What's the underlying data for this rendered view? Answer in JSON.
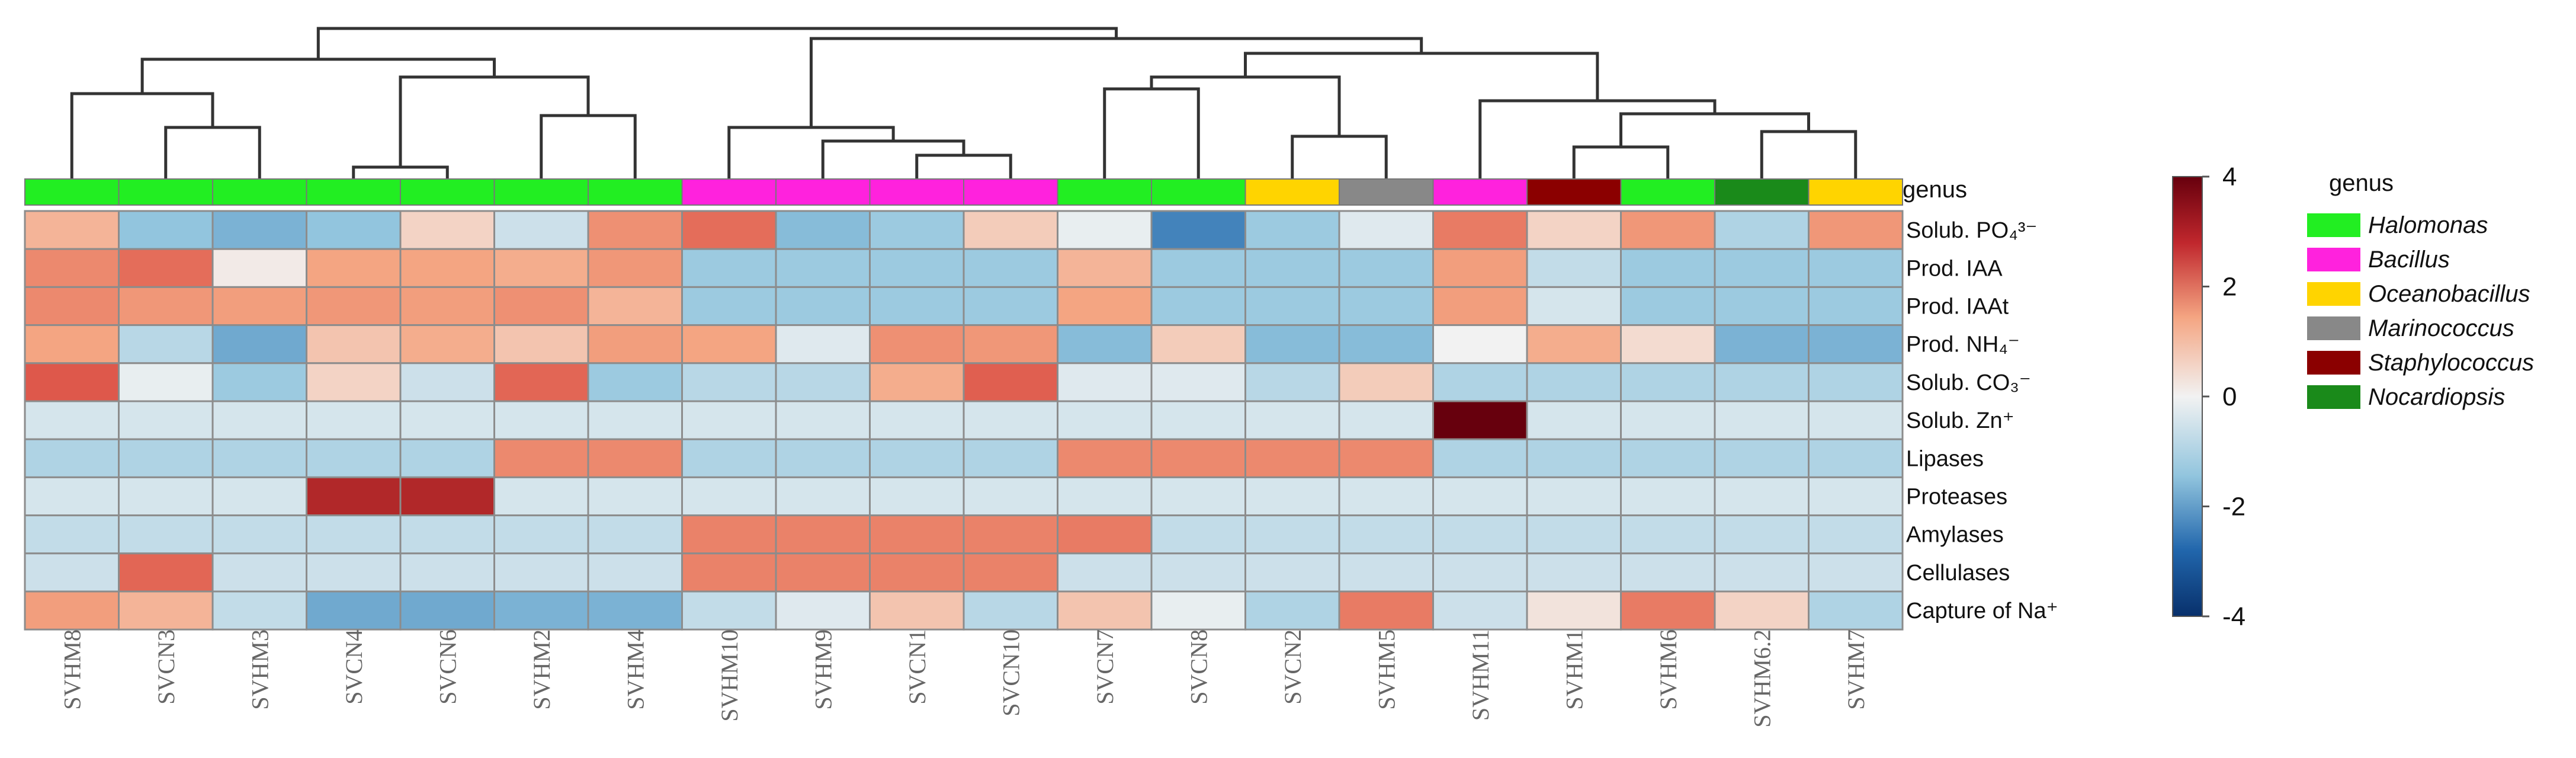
{
  "chart_data": {
    "type": "heatmap",
    "genus_label": "genus",
    "rows": [
      "Solub. PO₄³⁻",
      "Prod. IAA",
      "Prod. IAAt",
      "Prod. NH₄⁻",
      "Solub. CO₃⁻",
      "Solub. Zn⁺",
      "Lipases",
      "Proteases",
      "Amylases",
      "Cellulases",
      "Capture of Na⁺"
    ],
    "columns": [
      "SVHM8",
      "SVCN3",
      "SVHM3",
      "SVCN4",
      "SVCN6",
      "SVHM2",
      "SVHM4",
      "SVHM10",
      "SVHM9",
      "SVCN1",
      "SVCN10",
      "SVCN7",
      "SVCN8",
      "SVCN2",
      "SVHM5",
      "SVHM11",
      "SVHM1",
      "SVHM6",
      "SVHM6.2",
      "SVHM7"
    ],
    "column_genus": [
      "Halomonas",
      "Halomonas",
      "Halomonas",
      "Halomonas",
      "Halomonas",
      "Halomonas",
      "Halomonas",
      "Bacillus",
      "Bacillus",
      "Bacillus",
      "Bacillus",
      "Halomonas",
      "Halomonas",
      "Oceanobacillus",
      "Marinococcus",
      "Bacillus",
      "Staphylococcus",
      "Halomonas",
      "Nocardiopsis",
      "Oceanobacillus"
    ],
    "values": [
      [
        0.8,
        -1.0,
        -1.2,
        -1.0,
        0.4,
        -0.4,
        1.3,
        1.8,
        -1.1,
        -0.9,
        0.5,
        -0.1,
        -1.7,
        -0.9,
        -0.2,
        1.6,
        0.4,
        1.2,
        -0.7,
        1.2
      ],
      [
        1.4,
        1.8,
        0.1,
        1.0,
        1.0,
        0.9,
        1.2,
        -0.9,
        -0.9,
        -0.9,
        -0.9,
        0.8,
        -0.9,
        -0.9,
        -0.9,
        1.1,
        -0.5,
        -0.9,
        -0.9,
        -0.9
      ],
      [
        1.4,
        1.2,
        1.1,
        1.2,
        1.1,
        1.3,
        0.8,
        -0.9,
        -0.9,
        -0.9,
        -0.9,
        1.0,
        -0.9,
        -0.9,
        -0.9,
        1.1,
        -0.3,
        -0.9,
        -0.9,
        -0.9
      ],
      [
        1.0,
        -0.6,
        -1.3,
        0.6,
        0.9,
        0.6,
        1.1,
        1.0,
        -0.2,
        1.3,
        1.2,
        -1.1,
        0.5,
        -1.1,
        -1.1,
        0.0,
        0.9,
        0.3,
        -1.2,
        -1.2
      ],
      [
        2.1,
        -0.1,
        -0.9,
        0.4,
        -0.4,
        1.9,
        -0.9,
        -0.6,
        -0.6,
        0.9,
        2.0,
        -0.2,
        -0.2,
        -0.6,
        0.5,
        -0.7,
        -0.7,
        -0.7,
        -0.7,
        -0.7
      ],
      [
        -0.3,
        -0.3,
        -0.3,
        -0.3,
        -0.3,
        -0.3,
        -0.3,
        -0.3,
        -0.3,
        -0.3,
        -0.3,
        -0.3,
        -0.3,
        -0.3,
        -0.3,
        4.3,
        -0.3,
        -0.3,
        -0.3,
        -0.3
      ],
      [
        -0.7,
        -0.7,
        -0.7,
        -0.7,
        -0.7,
        1.4,
        1.4,
        -0.7,
        -0.7,
        -0.7,
        -0.7,
        1.4,
        1.4,
        1.4,
        1.4,
        -0.7,
        -0.7,
        -0.7,
        -0.7,
        -0.7
      ],
      [
        -0.3,
        -0.3,
        -0.3,
        3.0,
        3.0,
        -0.3,
        -0.3,
        -0.3,
        -0.3,
        -0.3,
        -0.3,
        -0.3,
        -0.3,
        -0.3,
        -0.3,
        -0.3,
        -0.3,
        -0.3,
        -0.3,
        -0.3
      ],
      [
        -0.5,
        -0.5,
        -0.5,
        -0.5,
        -0.5,
        -0.5,
        -0.5,
        1.5,
        1.5,
        1.5,
        1.5,
        1.6,
        -0.5,
        -0.5,
        -0.5,
        -0.5,
        -0.5,
        -0.5,
        -0.5,
        -0.5
      ],
      [
        -0.4,
        1.9,
        -0.4,
        -0.4,
        -0.4,
        -0.4,
        -0.4,
        1.5,
        1.5,
        1.5,
        1.5,
        -0.4,
        -0.4,
        -0.4,
        -0.4,
        -0.4,
        -0.4,
        -0.4,
        -0.4,
        -0.4
      ],
      [
        1.1,
        0.8,
        -0.5,
        -1.3,
        -1.3,
        -1.2,
        -1.2,
        -0.5,
        -0.2,
        0.6,
        -0.6,
        0.6,
        -0.1,
        -0.7,
        1.6,
        -0.4,
        0.2,
        1.6,
        0.4,
        -0.7
      ]
    ],
    "color_scale": {
      "min": -4,
      "max": 4,
      "ticks": [
        "4",
        "2",
        "0",
        "-2",
        "-4"
      ],
      "low": "#08306b",
      "mid": "#f2f2f2",
      "high": "#67000d"
    },
    "legend": {
      "title": "genus",
      "items": [
        {
          "name": "Halomonas",
          "color": "#22ee22"
        },
        {
          "name": "Bacillus",
          "color": "#ff22dd"
        },
        {
          "name": "Oceanobacillus",
          "color": "#ffd400"
        },
        {
          "name": "Marinococcus",
          "color": "#888888"
        },
        {
          "name": "Staphylococcus",
          "color": "#8b0000"
        },
        {
          "name": "Nocardiopsis",
          "color": "#1a8a1a"
        }
      ]
    }
  }
}
